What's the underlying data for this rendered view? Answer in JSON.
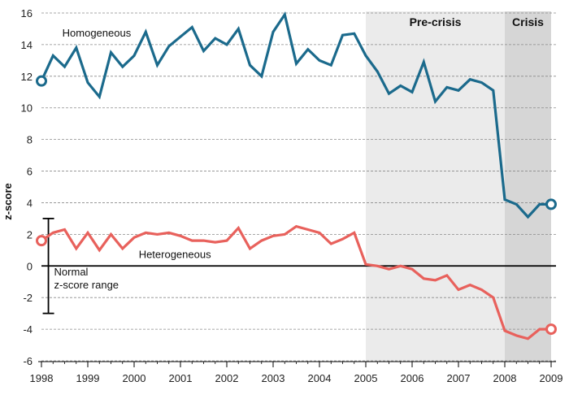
{
  "chart_data": {
    "type": "line",
    "title": "",
    "xlabel": "",
    "ylabel": "z-score",
    "xlim": [
      1998,
      2009
    ],
    "ylim": [
      -6,
      16
    ],
    "x_ticks": [
      1998,
      1999,
      2000,
      2001,
      2002,
      2003,
      2004,
      2005,
      2006,
      2007,
      2008,
      2009
    ],
    "x_tick_labels": [
      "1998",
      "1999",
      "2000",
      "2001",
      "2002",
      "2003",
      "2004",
      "2005",
      "2006",
      "2007",
      "2008",
      "2009"
    ],
    "y_ticks": [
      -6,
      -4,
      -2,
      0,
      2,
      4,
      6,
      8,
      10,
      12,
      14,
      16
    ],
    "y_tick_labels": [
      "-6",
      "-4",
      "-2",
      "0",
      "2",
      "4",
      "6",
      "8",
      "10",
      "12",
      "14",
      "16"
    ],
    "grid": "horizontal dashed",
    "regions": [
      {
        "label": "Pre-crisis",
        "x_start": 2005,
        "x_end": 2008,
        "color": "#ebebeb"
      },
      {
        "label": "Crisis",
        "x_start": 2008,
        "x_end": 2009,
        "color": "#d6d6d6"
      }
    ],
    "series": [
      {
        "name": "Homogeneous",
        "color": "#1b6a8c",
        "x": [
          1998.0,
          1998.25,
          1998.5,
          1998.75,
          1999.0,
          1999.25,
          1999.5,
          1999.75,
          2000.0,
          2000.25,
          2000.5,
          2000.75,
          2001.0,
          2001.25,
          2001.5,
          2001.75,
          2002.0,
          2002.25,
          2002.5,
          2002.75,
          2003.0,
          2003.25,
          2003.5,
          2003.75,
          2004.0,
          2004.25,
          2004.5,
          2004.75,
          2005.0,
          2005.25,
          2005.5,
          2005.75,
          2006.0,
          2006.25,
          2006.5,
          2006.75,
          2007.0,
          2007.25,
          2007.5,
          2007.75,
          2008.0,
          2008.25,
          2008.5,
          2008.75,
          2009.0
        ],
        "values": [
          11.7,
          13.3,
          12.6,
          13.8,
          11.6,
          10.7,
          13.5,
          12.6,
          13.3,
          14.8,
          12.7,
          13.9,
          14.5,
          15.1,
          13.6,
          14.4,
          14.0,
          15.0,
          12.7,
          12.0,
          14.8,
          15.9,
          12.8,
          13.7,
          13.0,
          12.7,
          14.6,
          14.7,
          13.3,
          12.3,
          10.9,
          11.4,
          11.0,
          12.9,
          10.4,
          11.3,
          11.1,
          11.8,
          11.6,
          11.1,
          4.2,
          3.9,
          3.1,
          3.9,
          3.9
        ],
        "endpoint_markers": true
      },
      {
        "name": "Heterogeneous",
        "color": "#e8615c",
        "x": [
          1998.0,
          1998.25,
          1998.5,
          1998.75,
          1999.0,
          1999.25,
          1999.5,
          1999.75,
          2000.0,
          2000.25,
          2000.5,
          2000.75,
          2001.0,
          2001.25,
          2001.5,
          2001.75,
          2002.0,
          2002.25,
          2002.5,
          2002.75,
          2003.0,
          2003.25,
          2003.5,
          2003.75,
          2004.0,
          2004.25,
          2004.5,
          2004.75,
          2005.0,
          2005.25,
          2005.5,
          2005.75,
          2006.0,
          2006.25,
          2006.5,
          2006.75,
          2007.0,
          2007.25,
          2007.5,
          2007.75,
          2008.0,
          2008.25,
          2008.5,
          2008.75,
          2009.0
        ],
        "values": [
          1.6,
          2.1,
          2.3,
          1.1,
          2.1,
          1.0,
          2.0,
          1.1,
          1.8,
          2.1,
          2.0,
          2.1,
          1.9,
          1.6,
          1.6,
          1.5,
          1.6,
          2.4,
          1.1,
          1.6,
          1.9,
          2.0,
          2.5,
          2.3,
          2.1,
          1.4,
          1.7,
          2.1,
          0.1,
          0.0,
          -0.2,
          0.0,
          -0.2,
          -0.8,
          -0.9,
          -0.6,
          -1.5,
          -1.2,
          -1.5,
          -2.0,
          -4.1,
          -4.4,
          -4.6,
          -4.0,
          -4.0
        ],
        "endpoint_markers": true
      }
    ],
    "annotations": [
      {
        "label_lines": [
          "Normal",
          "z-score range"
        ],
        "y_range": [
          -3,
          3
        ],
        "x": 1998.15
      }
    ]
  }
}
